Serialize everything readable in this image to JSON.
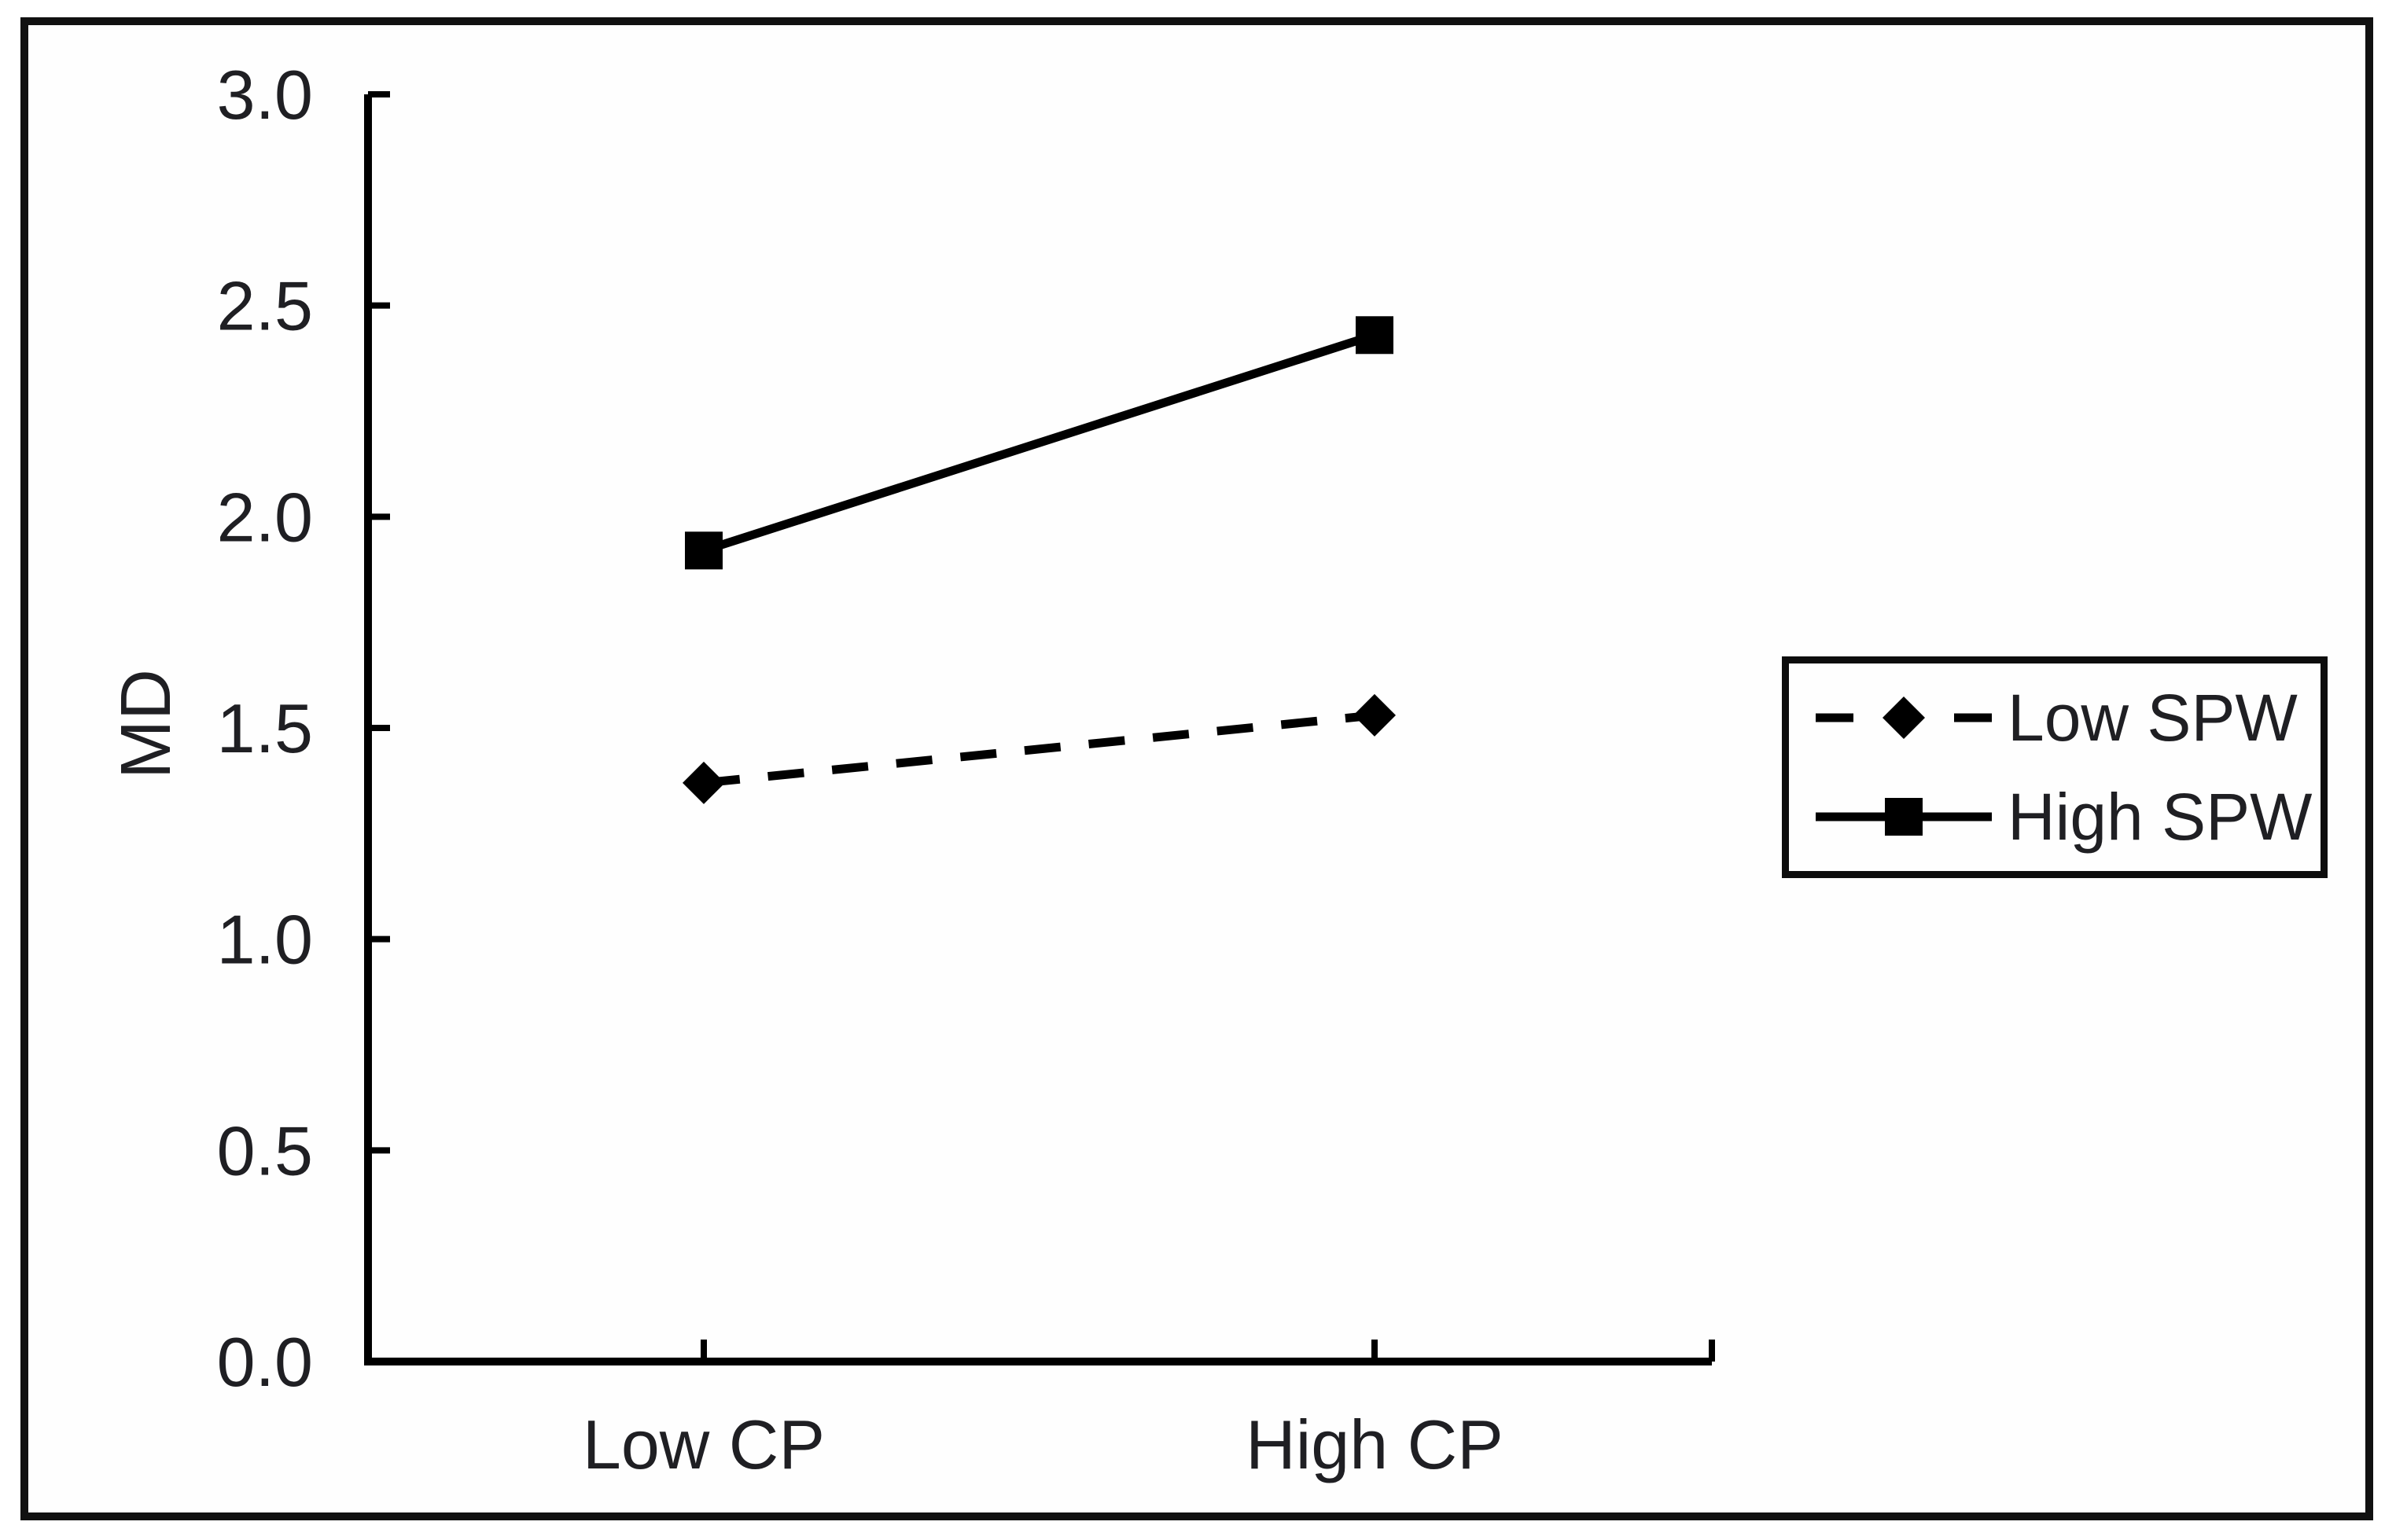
{
  "figure": {
    "background": "#ffffff",
    "border_color": "#111111",
    "line_color": "#000000",
    "text_color": "#1f1f23"
  },
  "chart_data": {
    "type": "line",
    "title": "",
    "xlabel": "",
    "ylabel": "MD",
    "categories": [
      "Low CP",
      "High CP"
    ],
    "series": [
      {
        "name": "Low SPW",
        "values": [
          1.37,
          1.53
        ],
        "line_style": "dashed",
        "marker": "diamond",
        "color": "#000000"
      },
      {
        "name": "High SPW",
        "values": [
          1.92,
          2.43
        ],
        "line_style": "solid",
        "marker": "square",
        "color": "#000000"
      }
    ],
    "ylim": [
      0.0,
      3.0
    ],
    "y_tick_labels": [
      "3.0",
      "2.5",
      "2.0",
      "1.5",
      "1.0",
      "0.5",
      "0.0"
    ],
    "grid": false,
    "legend_position": "right-center"
  }
}
